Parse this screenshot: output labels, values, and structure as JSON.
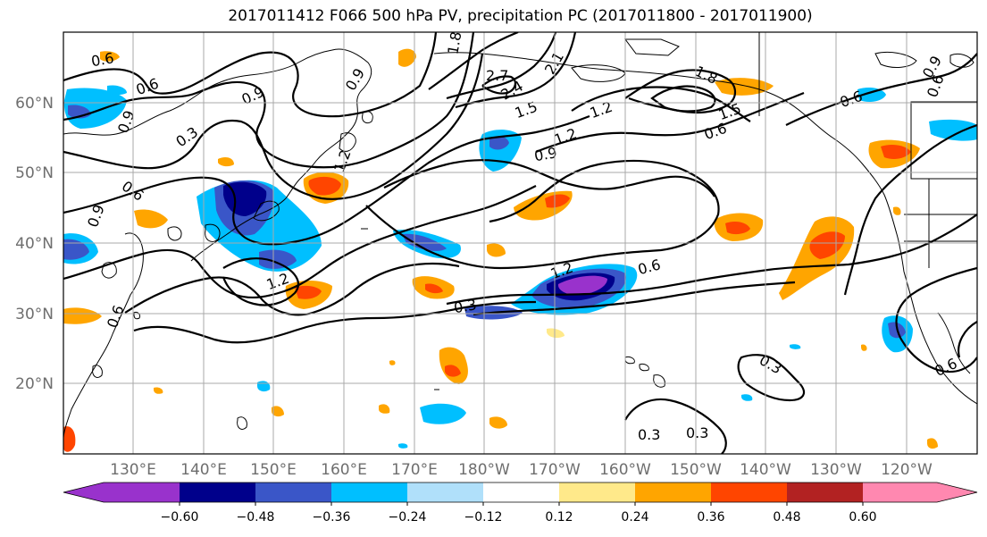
{
  "title": "2017011412 F066 500 hPa PV, precipitation PC (2017011800 - 2017011900)",
  "lat_labels": [
    "60°N",
    "50°N",
    "40°N",
    "30°N",
    "20°N"
  ],
  "lon_labels": [
    "130°E",
    "140°E",
    "150°E",
    "160°E",
    "170°E",
    "180°W",
    "170°W",
    "160°W",
    "150°W",
    "140°W",
    "130°W",
    "120°W"
  ],
  "colorbar": {
    "colors": [
      "#9932cc",
      "#00008b",
      "#3a56c8",
      "#00bfff",
      "#b0e0fa",
      "#ffffff",
      "#ffe98a",
      "#ffa500",
      "#ff4500",
      "#b22222",
      "#ff88b0"
    ],
    "tick_labels": [
      "−0.60",
      "−0.48",
      "−0.36",
      "−0.24",
      "−0.12",
      "0.12",
      "0.24",
      "0.36",
      "0.48",
      "0.60"
    ]
  },
  "contour_labels": [
    "0.6",
    "0.6",
    "0.9",
    "0.9",
    "0.3",
    "0.6",
    "0.9",
    "1.8",
    "2.7",
    "2.4",
    "2.1",
    "1.5",
    "1.2",
    "0.9",
    "1.8",
    "1.5",
    "0.6",
    "1.2",
    "0.9",
    "0.6",
    "1.2",
    "0.6",
    "0.6",
    "1.2",
    "0.3",
    "0.3",
    "0.3",
    "0.3",
    "0.6",
    "0.9",
    "1.2",
    "0.6"
  ]
}
